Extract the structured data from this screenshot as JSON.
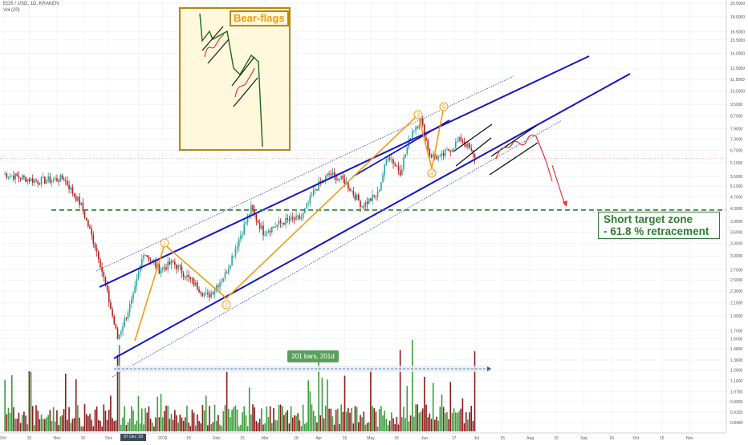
{
  "header": {
    "symbol": "EOS / USD, 1D, KRAKEN",
    "volume_indicator": "Vol (20)"
  },
  "annotations": {
    "bear_flags": "Bear-flags",
    "target_line1": "Short target zone",
    "target_line2": "- 61.8 % retracement",
    "bars_range": "201 bars, 201d",
    "cursor_date": "07 Dec '18",
    "wave_labels": [
      "1",
      "2",
      "3",
      "4",
      "5"
    ]
  },
  "colors": {
    "up": "#26a69a",
    "down": "#b71c1c",
    "channel": "#1515c8",
    "wave": "#f39c12",
    "target_line": "#2e7d32",
    "flag_curve": "#e53935"
  },
  "chart_data": {
    "type": "candlestick",
    "scale": "log",
    "ylim": [
      0.82,
      20.5
    ],
    "price_ticks": [
      20.5,
      18.5,
      16.5,
      15.5,
      14.0,
      12.5,
      11.5,
      10.5,
      9.5,
      8.7,
      7.9,
      7.3,
      6.7,
      6.1,
      5.5,
      5.1,
      4.7,
      4.3,
      3.9,
      3.6,
      3.3,
      3.0,
      2.7,
      2.5,
      2.3,
      2.1,
      1.9,
      1.7,
      1.6,
      1.48,
      1.36,
      1.26,
      1.16,
      1.07,
      0.99,
      0.915,
      0.845
    ],
    "price_tick_labels": [
      "20.5000",
      "18.5000",
      "16.5000",
      "15.5000",
      "14.0000",
      "12.5000",
      "11.5000",
      "10.5000",
      "9.5000",
      "8.7000",
      "7.9000",
      "7.3000",
      "6.7000",
      "6.1000",
      "5.5000",
      "5.1000",
      "4.7000",
      "4.3000",
      "3.9000",
      "3.6000",
      "3.3000",
      "3.0000",
      "2.7000",
      "2.5000",
      "2.3000",
      "2.1000",
      "1.9000",
      "1.7000",
      "1.6000",
      "1.4800",
      "1.3600",
      "1.2600",
      "1.1600",
      "1.0700",
      "0.9900",
      "0.9150",
      "0.8450"
    ],
    "current_price": 6.3007,
    "current_price_label": "6.3007",
    "target_price": 4.2555,
    "target_price_label": "4.2555",
    "x_labels": [
      "Oct",
      "15",
      "Nov",
      "15",
      "Dec",
      "17",
      "2019",
      "15",
      "Feb",
      "15",
      "Mar",
      "18",
      "Apr",
      "15",
      "May",
      "15",
      "Jun",
      "17",
      "Jul",
      "15",
      "Aug",
      "15",
      "Sep",
      "16",
      "Oct",
      "15",
      "Nov"
    ],
    "x_label_days": [
      0,
      15,
      31,
      46,
      61,
      78,
      92,
      107,
      123,
      138,
      151,
      169,
      182,
      197,
      212,
      227,
      243,
      260,
      273,
      288,
      304,
      319,
      335,
      351,
      365,
      380,
      396
    ],
    "start_date": "Oct 1",
    "key_points": [
      {
        "day": 0,
        "price": 5.6
      },
      {
        "day": 20,
        "price": 5.3
      },
      {
        "day": 35,
        "price": 5.4
      },
      {
        "day": 45,
        "price": 4.4
      },
      {
        "day": 55,
        "price": 3.0
      },
      {
        "day": 66,
        "price": 1.6
      },
      {
        "day": 75,
        "price": 2.2
      },
      {
        "day": 81,
        "price": 3.1
      },
      {
        "day": 90,
        "price": 2.7
      },
      {
        "day": 98,
        "price": 2.85
      },
      {
        "day": 108,
        "price": 2.5
      },
      {
        "day": 118,
        "price": 2.2
      },
      {
        "day": 128,
        "price": 2.6
      },
      {
        "day": 135,
        "price": 3.3
      },
      {
        "day": 143,
        "price": 4.3
      },
      {
        "day": 150,
        "price": 3.6
      },
      {
        "day": 162,
        "price": 3.9
      },
      {
        "day": 172,
        "price": 4.0
      },
      {
        "day": 180,
        "price": 5.0
      },
      {
        "day": 188,
        "price": 5.6
      },
      {
        "day": 197,
        "price": 5.3
      },
      {
        "day": 207,
        "price": 4.4
      },
      {
        "day": 216,
        "price": 4.8
      },
      {
        "day": 222,
        "price": 6.5
      },
      {
        "day": 229,
        "price": 5.7
      },
      {
        "day": 236,
        "price": 7.8
      },
      {
        "day": 241,
        "price": 8.4
      },
      {
        "day": 246,
        "price": 6.5
      },
      {
        "day": 252,
        "price": 6.3
      },
      {
        "day": 258,
        "price": 6.8
      },
      {
        "day": 264,
        "price": 7.3
      },
      {
        "day": 268,
        "price": 6.9
      },
      {
        "day": 272,
        "price": 6.3
      }
    ]
  }
}
